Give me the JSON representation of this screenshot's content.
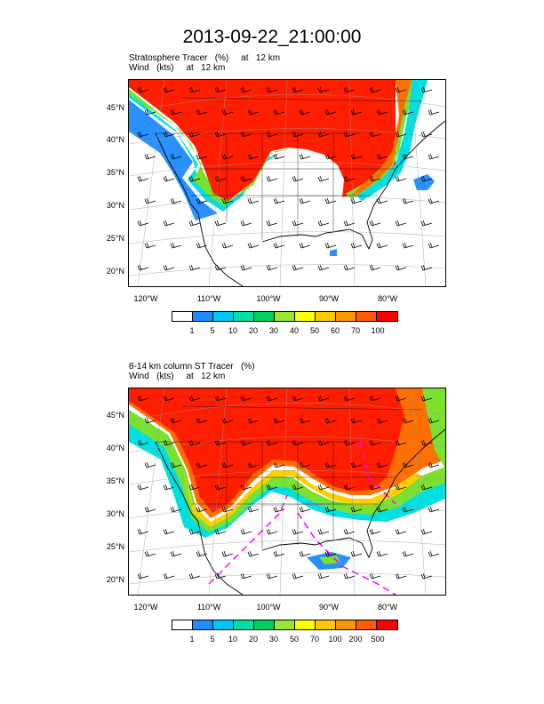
{
  "title": "2013-09-22_21:00:00",
  "panels": [
    {
      "line1": "Stratosphere Tracer   (%)     at   12 km",
      "line2": "Wind   (kts)     at   12 km",
      "lat_labels": [
        "45°N",
        "40°N",
        "35°N",
        "30°N",
        "25°N",
        "20°N"
      ],
      "lon_labels": [
        "120°W",
        "110°W",
        "100°W",
        "90°W",
        "80°W"
      ],
      "colorbar_labels": [
        "1",
        "5",
        "10",
        "20",
        "30",
        "40",
        "50",
        "60",
        "70",
        "100"
      ]
    },
    {
      "line1": "8-14 km column ST Tracer   (%)",
      "line2": "Wind   (kts)     at   12 km",
      "lat_labels": [
        "45°N",
        "40°N",
        "35°N",
        "30°N",
        "25°N",
        "20°N"
      ],
      "lon_labels": [
        "120°W",
        "110°W",
        "100°W",
        "90°W",
        "80°W"
      ],
      "colorbar_labels": [
        "1",
        "5",
        "10",
        "20",
        "30",
        "50",
        "70",
        "100",
        "200",
        "500"
      ]
    }
  ],
  "colorbar_colors": [
    "#ffffff",
    "#1e8cff",
    "#00c8ff",
    "#00e0a0",
    "#00d060",
    "#96e632",
    "#ffff00",
    "#ffc800",
    "#ff9600",
    "#ff5a00",
    "#ff0000"
  ],
  "fill_colors": {
    "high": "#ff1e00",
    "orange": "#ff6e00",
    "yellow": "#ffd000",
    "green": "#7be030",
    "cyan": "#00e0e0",
    "blue": "#2890ff",
    "magenta": "#ff00ff"
  }
}
